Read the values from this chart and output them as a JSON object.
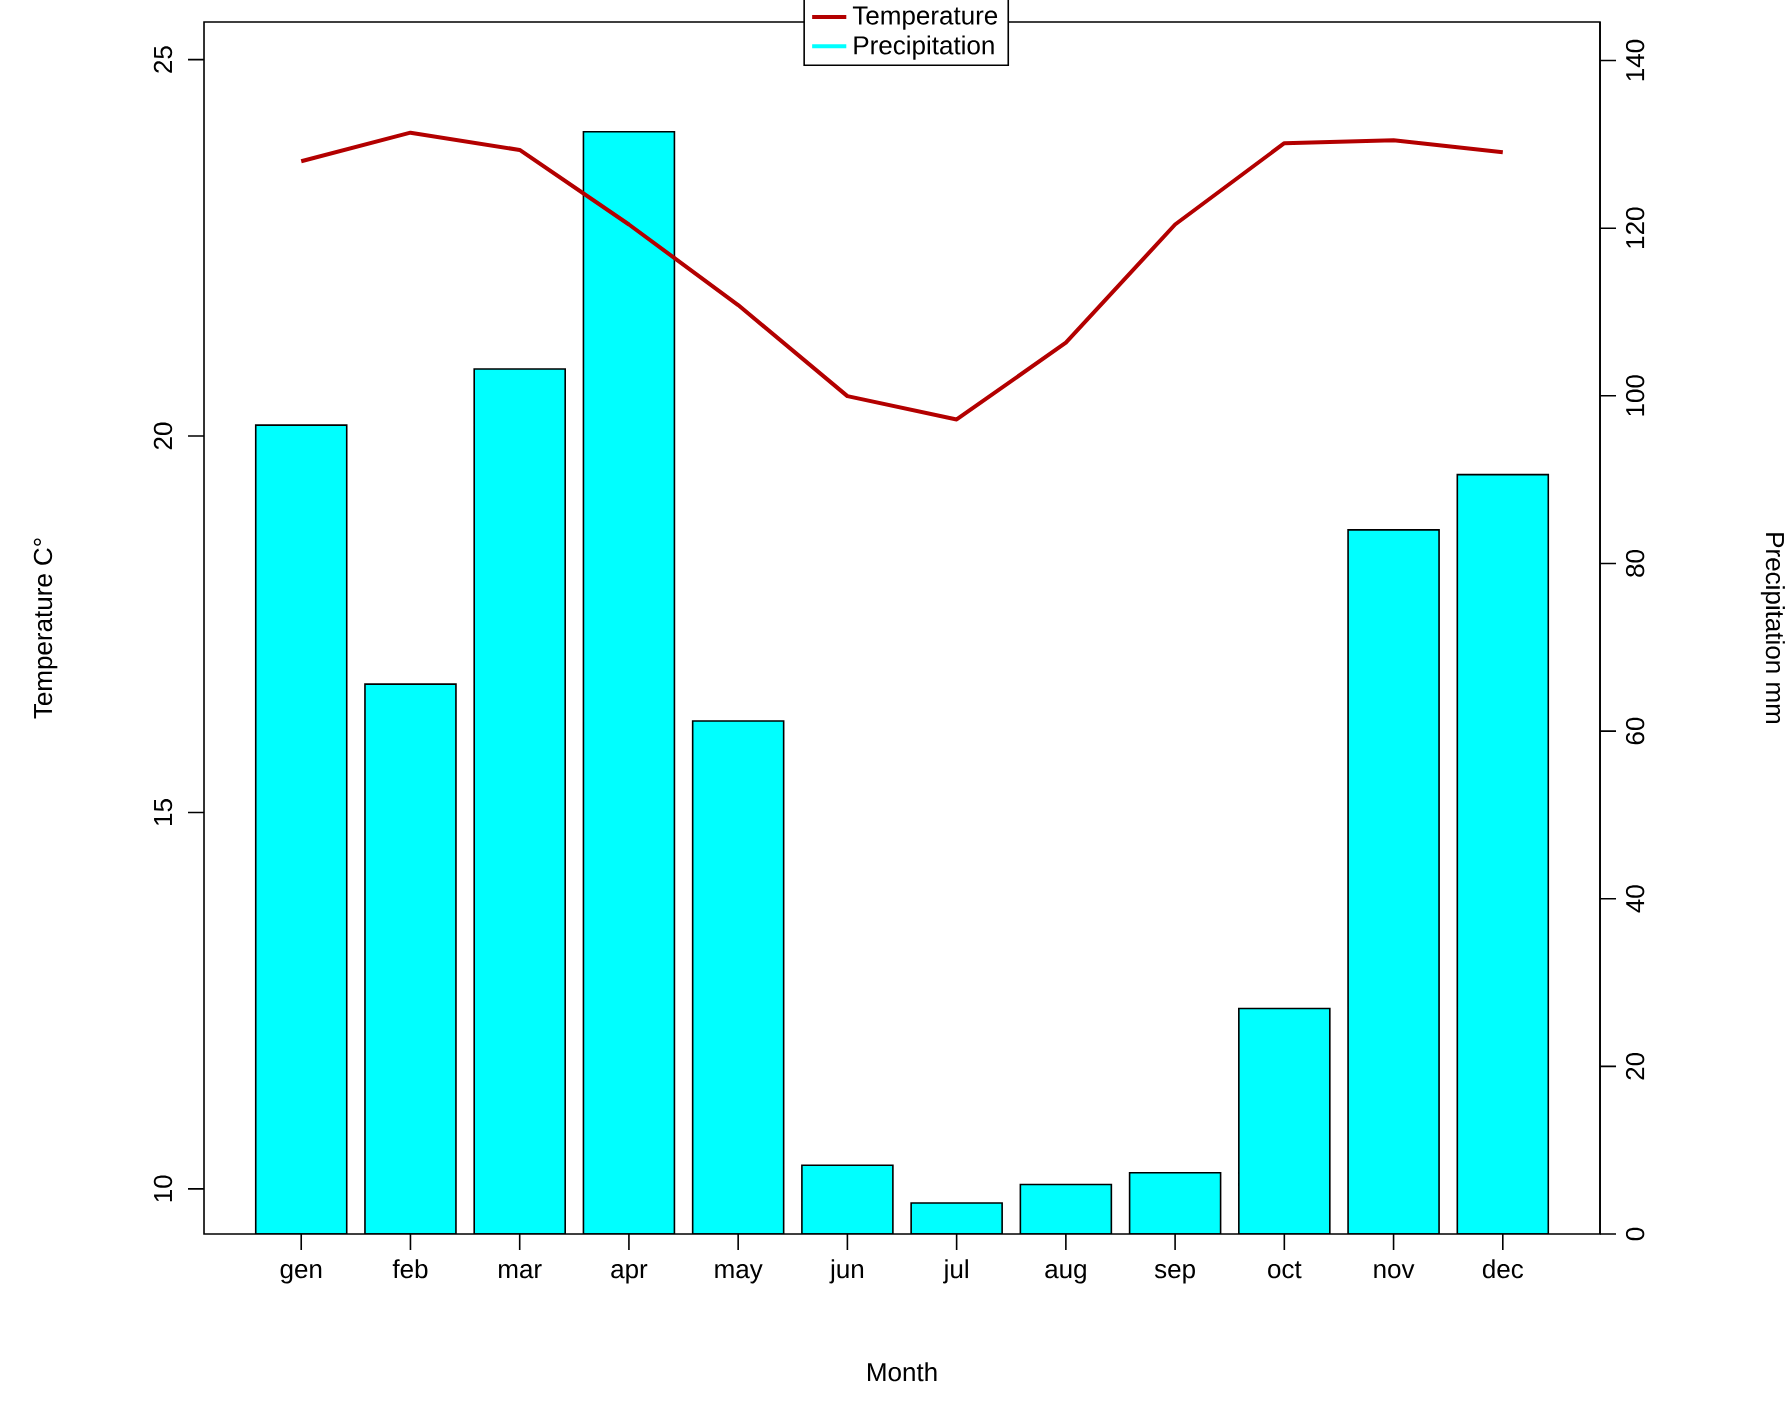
{
  "chart_data": {
    "type": "bar",
    "xlabel": "Month",
    "ylabel": "Temperature C°",
    "y2label": "Precipitation mm",
    "categories": [
      "gen",
      "feb",
      "mar",
      "apr",
      "may",
      "jun",
      "jul",
      "aug",
      "sep",
      "oct",
      "nov",
      "dec"
    ],
    "series": [
      {
        "name": "Temperature",
        "type": "line",
        "color": "#b30000",
        "values": [
          23.65,
          24.03,
          23.8,
          22.81,
          21.74,
          20.53,
          20.22,
          21.24,
          22.81,
          23.89,
          23.93,
          23.77
        ]
      },
      {
        "name": "Precipitation",
        "axis": "y2",
        "color": "#00ffff",
        "values": [
          96.5,
          65.6,
          103.2,
          131.5,
          61.2,
          8.2,
          3.7,
          5.9,
          7.3,
          26.9,
          84.0,
          90.6
        ]
      }
    ],
    "ylim": [
      9.4,
      25.5
    ],
    "yticks": [
      10,
      15,
      20,
      25
    ],
    "y2lim": [
      0,
      144.6
    ],
    "y2ticks": [
      0,
      20,
      40,
      60,
      80,
      100,
      120,
      140
    ],
    "legend": "top",
    "grid": false
  }
}
